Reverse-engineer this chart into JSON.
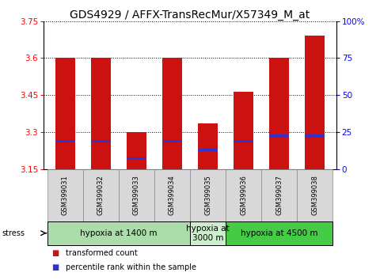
{
  "title": "GDS4929 / AFFX-TransRecMur/X57349_M_at",
  "samples": [
    "GSM399031",
    "GSM399032",
    "GSM399033",
    "GSM399034",
    "GSM399035",
    "GSM399036",
    "GSM399037",
    "GSM399038"
  ],
  "bar_values": [
    3.602,
    3.602,
    3.3,
    3.602,
    3.335,
    3.465,
    3.602,
    3.692
  ],
  "percentile_values": [
    3.265,
    3.265,
    3.195,
    3.265,
    3.228,
    3.263,
    3.285,
    3.285
  ],
  "ymin": 3.15,
  "ymax": 3.75,
  "yticks": [
    3.15,
    3.3,
    3.45,
    3.6,
    3.75
  ],
  "ytick_labels": [
    "3.15",
    "3.3",
    "3.45",
    "3.6",
    "3.75"
  ],
  "right_yticks": [
    0,
    25,
    50,
    75,
    100
  ],
  "right_ytick_labels": [
    "0",
    "25",
    "50",
    "75",
    "100%"
  ],
  "bar_color": "#cc1111",
  "percentile_color": "#3333cc",
  "bar_width": 0.55,
  "groups": [
    {
      "label": "hypoxia at 1400 m",
      "start": 0,
      "end": 3,
      "color": "#aaddaa"
    },
    {
      "label": "hypoxia at\n3000 m",
      "start": 4,
      "end": 4,
      "color": "#cceecc"
    },
    {
      "label": "hypoxia at 4500 m",
      "start": 5,
      "end": 7,
      "color": "#44cc44"
    }
  ],
  "stress_label": "stress",
  "legend_red": "transformed count",
  "legend_blue": "percentile rank within the sample",
  "title_fontsize": 10,
  "axis_fontsize": 7.5,
  "tick_label_fontsize": 7,
  "sample_label_fontsize": 6.0,
  "group_label_fontsize": 7.5,
  "legend_fontsize": 7.0,
  "bg_color": "#ffffff",
  "sample_box_color": "#d8d8d8",
  "sample_box_edge": "#888888"
}
